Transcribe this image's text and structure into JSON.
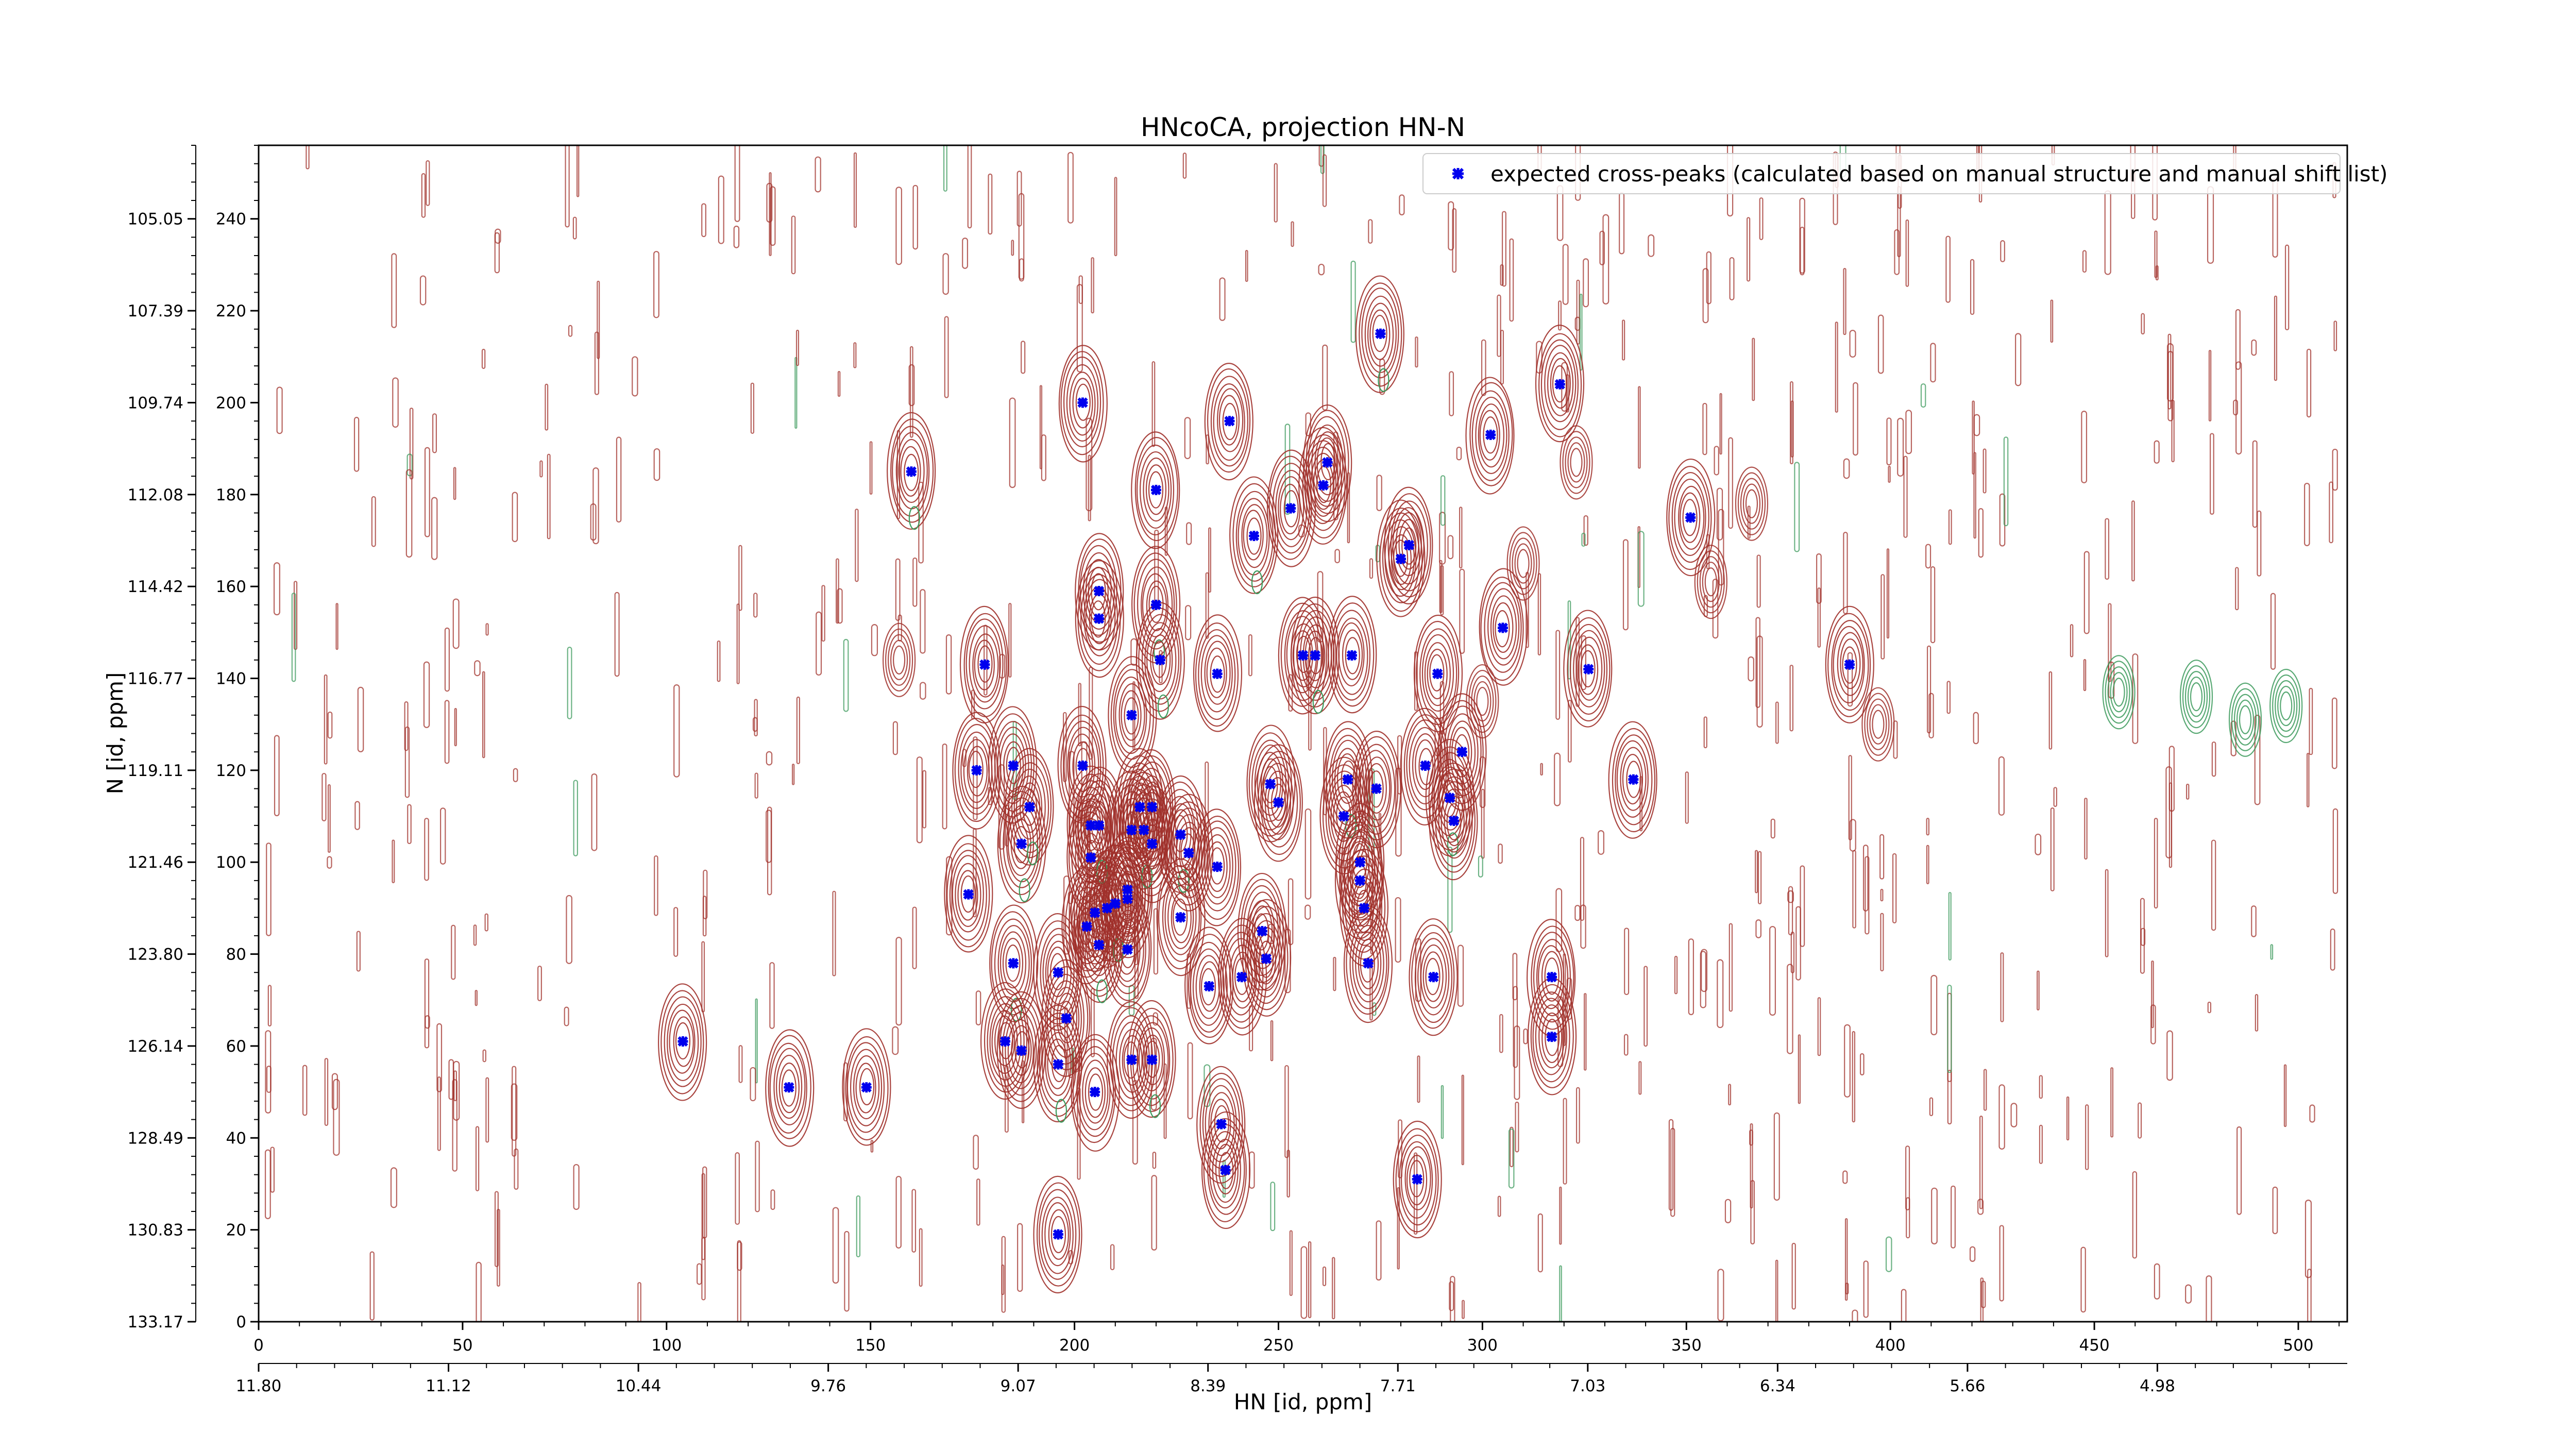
{
  "chart_data": {
    "type": "scatter",
    "title": "HNcoCA, projection HN-N",
    "xlabel": "HN [id, ppm]",
    "ylabel": "N [id, ppm]",
    "xlim": [
      0,
      512
    ],
    "ylim": [
      0,
      256
    ],
    "x_ticks": [
      "0",
      "50",
      "100",
      "150",
      "200",
      "250",
      "300",
      "350",
      "400",
      "450",
      "500"
    ],
    "x_ticks_ppm": [
      "11.80",
      "11.12",
      "10.44",
      "9.76",
      "9.07",
      "8.39",
      "7.71",
      "7.03",
      "6.34",
      "5.66",
      "4.98"
    ],
    "y_ticks": [
      "0",
      "20",
      "40",
      "60",
      "80",
      "100",
      "120",
      "140",
      "160",
      "180",
      "200",
      "220",
      "240"
    ],
    "y_ticks_ppm": [
      "133.17",
      "130.83",
      "128.49",
      "126.14",
      "123.80",
      "121.46",
      "119.11",
      "116.77",
      "114.42",
      "112.08",
      "109.74",
      "107.39",
      "105.05"
    ],
    "legend": "top-right",
    "grid": false,
    "colors": {
      "positive_contour": "#a0302a",
      "negative_contour": "#3c9a5c",
      "marker": "#0000ee"
    },
    "series": [
      {
        "name": "expected cross-peaks (calculated based on manual structure and manual shift list)",
        "marker": "x",
        "points": [
          [
            104,
            61
          ],
          [
            130,
            51
          ],
          [
            149,
            51
          ],
          [
            160,
            185
          ],
          [
            174,
            93
          ],
          [
            176,
            120
          ],
          [
            178,
            143
          ],
          [
            185,
            121
          ],
          [
            187,
            104
          ],
          [
            189,
            112
          ],
          [
            185,
            78
          ],
          [
            183,
            61
          ],
          [
            187,
            59
          ],
          [
            196,
            19
          ],
          [
            196,
            76
          ],
          [
            196,
            56
          ],
          [
            198,
            66
          ],
          [
            202,
            200
          ],
          [
            203,
            86
          ],
          [
            202,
            121
          ],
          [
            204,
            101
          ],
          [
            204,
            108
          ],
          [
            205,
            89
          ],
          [
            205,
            50
          ],
          [
            206,
            108
          ],
          [
            206,
            82
          ],
          [
            206,
            159
          ],
          [
            206,
            153
          ],
          [
            208,
            90
          ],
          [
            210,
            91
          ],
          [
            213,
            81
          ],
          [
            213,
            94
          ],
          [
            213,
            92
          ],
          [
            214,
            132
          ],
          [
            214,
            107
          ],
          [
            214,
            57
          ],
          [
            216,
            112
          ],
          [
            217,
            107
          ],
          [
            219,
            104
          ],
          [
            219,
            112
          ],
          [
            219,
            57
          ],
          [
            220,
            156
          ],
          [
            220,
            181
          ],
          [
            221,
            144
          ],
          [
            226,
            106
          ],
          [
            226,
            88
          ],
          [
            228,
            102
          ],
          [
            233,
            73
          ],
          [
            235,
            141
          ],
          [
            235,
            99
          ],
          [
            236,
            43
          ],
          [
            237,
            33
          ],
          [
            238,
            196
          ],
          [
            241,
            75
          ],
          [
            244,
            171
          ],
          [
            246,
            85
          ],
          [
            247,
            79
          ],
          [
            248,
            117
          ],
          [
            250,
            113
          ],
          [
            253,
            177
          ],
          [
            256,
            145
          ],
          [
            259,
            145
          ],
          [
            261,
            182
          ],
          [
            262,
            187
          ],
          [
            266,
            110
          ],
          [
            267,
            118
          ],
          [
            268,
            145
          ],
          [
            270,
            100
          ],
          [
            270,
            96
          ],
          [
            271,
            90
          ],
          [
            272,
            78
          ],
          [
            274,
            116
          ],
          [
            275,
            215
          ],
          [
            280,
            166
          ],
          [
            282,
            169
          ],
          [
            284,
            31
          ],
          [
            286,
            121
          ],
          [
            288,
            75
          ],
          [
            289,
            141
          ],
          [
            292,
            114
          ],
          [
            293,
            109
          ],
          [
            295,
            124
          ],
          [
            302,
            193
          ],
          [
            305,
            151
          ],
          [
            317,
            75
          ],
          [
            317,
            62
          ],
          [
            319,
            204
          ],
          [
            337,
            118
          ],
          [
            326,
            142
          ],
          [
            351,
            175
          ],
          [
            390,
            143
          ]
        ]
      }
    ]
  }
}
